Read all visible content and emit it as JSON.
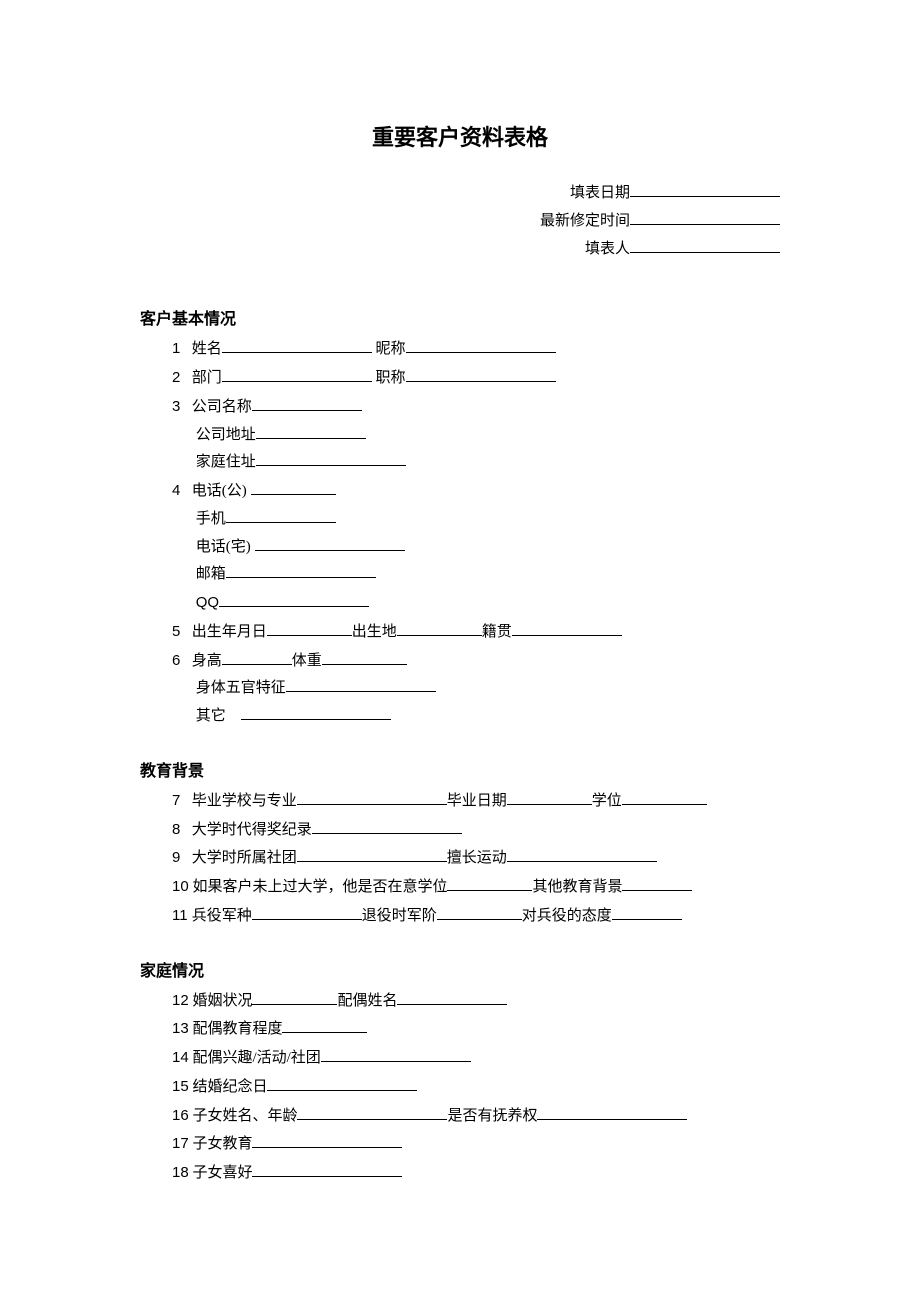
{
  "title": "重要客户资料表格",
  "meta": {
    "fill_date_label": "填表日期",
    "latest_revision_label": "最新修定时间",
    "filler_label": "填表人"
  },
  "sections": {
    "basic": {
      "heading": "客户基本情况",
      "items": {
        "n1": "1",
        "name_label": "姓名",
        "nickname_label": "昵称",
        "n2": "2",
        "department_label": "部门",
        "title_label": "职称",
        "n3": "3",
        "company_name_label": "公司名称",
        "company_addr_label": "公司地址",
        "home_addr_label": "家庭住址",
        "n4": "4",
        "phone_work_label": "电话(公)",
        "mobile_label": "手机",
        "phone_home_label": "电话(宅)",
        "email_label": "邮箱",
        "qq_label": "QQ",
        "n5": "5",
        "dob_label": "出生年月日",
        "birthplace_label": "出生地",
        "native_label": "籍贯",
        "n6": "6",
        "height_label": "身高",
        "weight_label": "体重",
        "features_label": "身体五官特征",
        "other_label": "其它"
      }
    },
    "education": {
      "heading": "教育背景",
      "items": {
        "n7": "7",
        "grad_school_label": "毕业学校与专业",
        "grad_date_label": "毕业日期",
        "degree_label": "学位",
        "n8": "8",
        "awards_label": "大学时代得奖纪录",
        "n9": "9",
        "clubs_label": "大学时所属社团",
        "sports_label": "擅长运动",
        "n10": "10",
        "no_college_label": "如果客户未上过大学，他是否在意学位",
        "other_edu_label": "其他教育背景",
        "n11": "11",
        "military_branch_label": "兵役军种",
        "discharge_rank_label": "退役时军阶",
        "military_attitude_label": "对兵役的态度"
      }
    },
    "family": {
      "heading": "家庭情况",
      "items": {
        "n12": "12",
        "marital_label": "婚姻状况",
        "spouse_name_label": "配偶姓名",
        "n13": "13",
        "spouse_edu_label": "配偶教育程度",
        "n14": "14",
        "spouse_interest_label": "配偶兴趣/活动/社团",
        "n15": "15",
        "anniversary_label": "结婚纪念日",
        "n16": "16",
        "children_name_age_label": "子女姓名、年龄",
        "custody_label": "是否有抚养权",
        "n17": "17",
        "children_edu_label": "子女教育",
        "n18": "18",
        "children_hobby_label": "子女喜好"
      }
    }
  },
  "style": {
    "background_color": "#ffffff",
    "text_color": "#000000",
    "title_fontsize": 22,
    "body_fontsize": 15,
    "heading_fontsize": 16,
    "line_height": 1.85
  }
}
